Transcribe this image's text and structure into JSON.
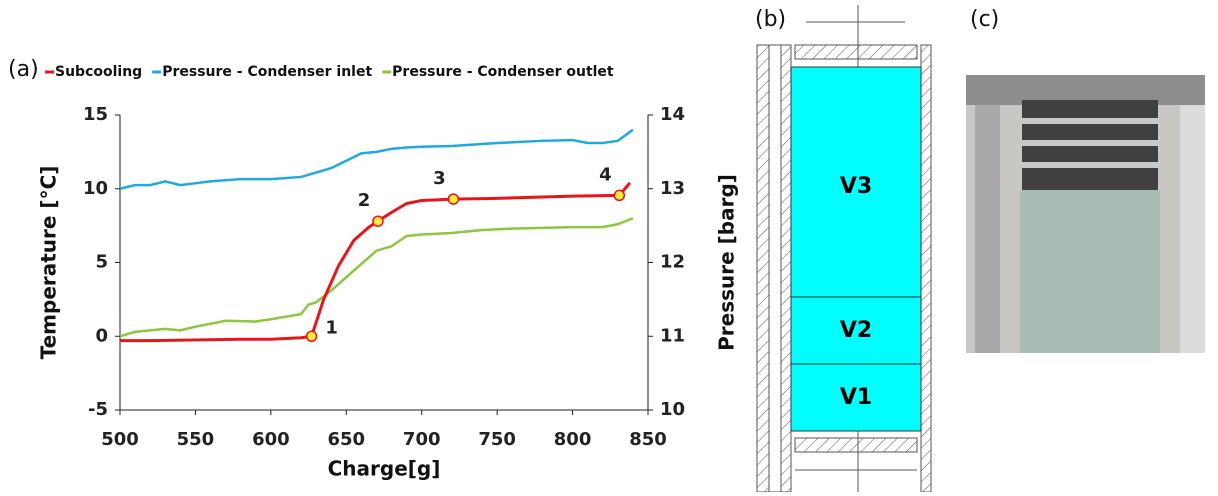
{
  "panels": {
    "a": "(a)",
    "b": "(b)",
    "c": "(c)"
  },
  "diagram": {
    "volumes": [
      "V3",
      "V2",
      "V1"
    ]
  },
  "chart_data": {
    "type": "line",
    "xlabel": "Charge[g]",
    "ylabel": "Temperature [°C]",
    "y2label": "Pressure [barg]",
    "xlim": [
      500,
      850
    ],
    "xticks": [
      500,
      550,
      600,
      650,
      700,
      750,
      800,
      850
    ],
    "ylim": [
      -5,
      15
    ],
    "yticks": [
      -5,
      0,
      5,
      10,
      15
    ],
    "y2lim": [
      10,
      14
    ],
    "y2ticks": [
      10,
      11,
      12,
      13,
      14
    ],
    "series": [
      {
        "name": "Subcooling",
        "color": "#e8141b",
        "x": [
          500,
          520,
          550,
          580,
          600,
          620,
          627,
          635,
          645,
          655,
          665,
          671,
          680,
          690,
          700,
          721,
          750,
          800,
          831,
          838
        ],
        "values": [
          -0.3,
          -0.3,
          -0.25,
          -0.2,
          -0.2,
          -0.1,
          0,
          2.5,
          4.8,
          6.5,
          7.4,
          7.8,
          8.4,
          9.0,
          9.2,
          9.3,
          9.35,
          9.5,
          9.55,
          10.4
        ]
      },
      {
        "name": "Pressure - Condenser inlet",
        "color": "#1fa9e1",
        "axis": "y2",
        "x": [
          500,
          510,
          520,
          530,
          540,
          560,
          580,
          600,
          620,
          630,
          640,
          650,
          660,
          670,
          680,
          690,
          700,
          720,
          750,
          780,
          800,
          810,
          820,
          830,
          840
        ],
        "values": [
          13.0,
          13.05,
          13.05,
          13.1,
          13.05,
          13.1,
          13.13,
          13.13,
          13.16,
          13.22,
          13.28,
          13.38,
          13.48,
          13.5,
          13.54,
          13.56,
          13.57,
          13.58,
          13.62,
          13.65,
          13.66,
          13.62,
          13.62,
          13.65,
          13.8
        ]
      },
      {
        "name": "Pressure - Condenser outlet",
        "color": "#8dc63f",
        "axis": "y2",
        "x": [
          500,
          510,
          530,
          540,
          550,
          570,
          590,
          600,
          620,
          625,
          630,
          640,
          650,
          660,
          670,
          680,
          690,
          700,
          720,
          740,
          760,
          800,
          820,
          830,
          840
        ],
        "values": [
          11.0,
          11.06,
          11.1,
          11.08,
          11.13,
          11.21,
          11.2,
          11.23,
          11.3,
          11.43,
          11.46,
          11.62,
          11.8,
          11.98,
          12.16,
          12.22,
          12.36,
          12.38,
          12.4,
          12.44,
          12.46,
          12.48,
          12.48,
          12.52,
          12.6
        ]
      }
    ],
    "points": [
      {
        "label": "1",
        "x": 627,
        "y": 0
      },
      {
        "label": "2",
        "x": 671,
        "y": 7.8
      },
      {
        "label": "3",
        "x": 721,
        "y": 9.3
      },
      {
        "label": "4",
        "x": 831,
        "y": 9.55
      }
    ]
  }
}
